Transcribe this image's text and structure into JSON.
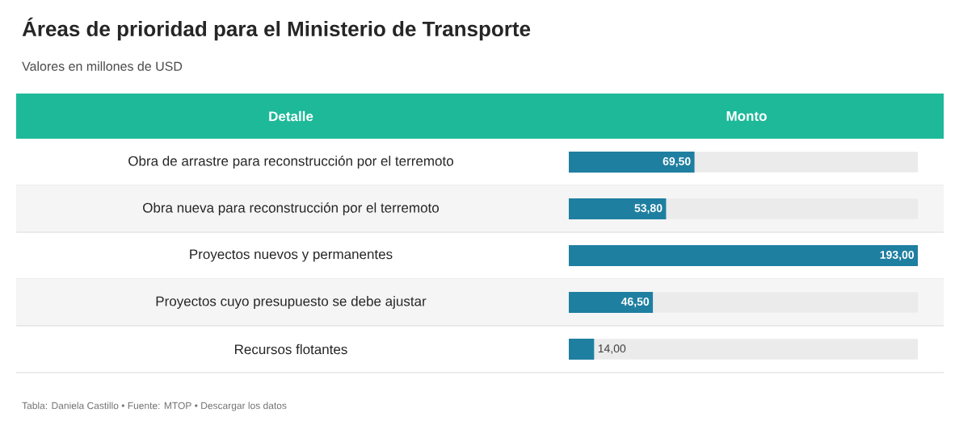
{
  "chart_data": {
    "type": "bar",
    "orientation": "horizontal",
    "title": "Áreas de prioridad para el Ministerio de Transporte",
    "subtitle": "Valores en millones de USD",
    "categories": [
      "Obra de arrastre para reconstrucción por el terremoto",
      "Obra nueva para reconstrucción por el terremoto",
      "Proyectos nuevos y permanentes",
      "Proyectos cuyo presupuesto se debe ajustar",
      "Recursos flotantes"
    ],
    "values": [
      69.5,
      53.8,
      193.0,
      46.5,
      14.0
    ],
    "value_labels": [
      "69,50",
      "53,80",
      "193,00",
      "46,50",
      "14,00"
    ],
    "color": "#1f7fa1",
    "xlim": [
      0,
      193
    ],
    "tick_labels": "y",
    "annotations": [
      "Detalle",
      "Monto",
      "Tabla: Daniela Castillo • Fuente: MTOP • Descargar los datos"
    ]
  }
}
